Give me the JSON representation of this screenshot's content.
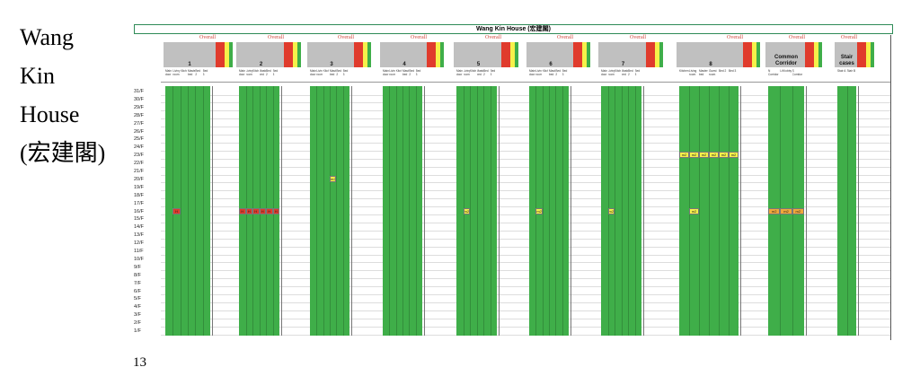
{
  "side_title": {
    "lines": [
      "Wang",
      "Kin",
      "House",
      "(宏建閣)"
    ]
  },
  "page_number": "13",
  "sheet": {
    "title": "Wang Kin House (宏建閣)",
    "overall_label": "Overall",
    "floors": [
      "31/F",
      "30/F",
      "29/F",
      "28/F",
      "27/F",
      "26/F",
      "25/F",
      "24/F",
      "23/F",
      "22/F",
      "21/F",
      "20/F",
      "19/F",
      "18/F",
      "17/F",
      "16/F",
      "15/F",
      "14/F",
      "13/F",
      "12/F",
      "11/F",
      "10/F",
      "9/F",
      "8/F",
      "7/F",
      "6/F",
      "5/F",
      "4/F",
      "3/F",
      "2/F",
      "1/F"
    ],
    "blocks": [
      {
        "label": "1",
        "headers": [
          "Main door",
          "Living room",
          "Kitchen",
          "Master bed",
          "Bed 2",
          "Bed 3"
        ]
      },
      {
        "label": "2",
        "headers": [
          "Main door",
          "Living room",
          "Kitchen",
          "Master bed",
          "Bed 2",
          "Bed 3"
        ]
      },
      {
        "label": "3",
        "headers": [
          "Main door",
          "Living room",
          "Kitchen",
          "Master bed",
          "Bed 2",
          "Bed 3"
        ]
      },
      {
        "label": "4",
        "headers": [
          "Main door",
          "Living room",
          "Kitchen",
          "Master bed",
          "Bed 2",
          "Bed 3"
        ]
      },
      {
        "label": "5",
        "headers": [
          "Main door",
          "Living room",
          "Kitchen",
          "Master bed",
          "Bed 2",
          "Bed 3"
        ]
      },
      {
        "label": "6",
        "headers": [
          "Main door",
          "Living room",
          "Kitchen",
          "Master bed",
          "Bed 2",
          "Bed 3"
        ]
      },
      {
        "label": "7",
        "headers": [
          "Main door",
          "Living room",
          "Kitchen",
          "Master bed",
          "Bed 2",
          "Bed 3"
        ]
      },
      {
        "label": "8",
        "headers": [
          "Kitchen",
          "Living room",
          "Master bed",
          "Guest room",
          "Bed 2",
          "Bed 3"
        ]
      },
      {
        "label": "Common\nCorridor",
        "headers": [
          "N Corridor",
          "Lift lobby",
          "S Corridor"
        ]
      },
      {
        "label": "Stair\ncases",
        "headers": [
          "Stair A",
          "Stair B"
        ]
      }
    ],
    "marks": {
      "mid": "m2",
      "high": "H"
    },
    "colors": {
      "green": "#3fae49",
      "red": "#e03b2c",
      "yellow": "#f6f14a",
      "orange": "#f0a83a",
      "grey": "#c0c0c0",
      "sheet_border": "#2e8b57"
    }
  }
}
